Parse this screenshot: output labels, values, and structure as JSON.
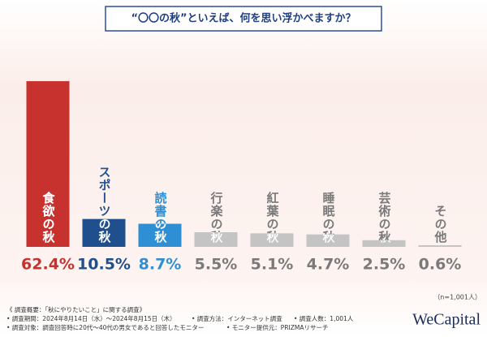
{
  "chart_data": {
    "type": "bar",
    "title": "“〇〇の秋”といえば、何を思い浮かべますか？",
    "categories": [
      "食欲の秋",
      "スポーツの秋",
      "読書の秋",
      "行楽の秋",
      "紅葉の秋",
      "睡眠の秋",
      "芸術の秋",
      "その他"
    ],
    "values": [
      62.4,
      10.5,
      8.7,
      5.5,
      5.1,
      4.7,
      2.5,
      0.6
    ],
    "value_labels": [
      "62.4%",
      "10.5%",
      "8.7%",
      "5.5%",
      "5.1%",
      "4.7%",
      "2.5%",
      "0.6%"
    ],
    "colors": [
      "#c7312e",
      "#1f4f8d",
      "#2e8fd4",
      "#c4c4c4",
      "#c4c4c4",
      "#c4c4c4",
      "#c4c4c4",
      "#c4c4c4"
    ],
    "label_colors": [
      "#c7312e",
      "#1f4f8d",
      "#2e8fd4",
      "#7a7a7a",
      "#7a7a7a",
      "#7a7a7a",
      "#7a7a7a",
      "#7a7a7a"
    ],
    "sample_note": "（n=1,001人）"
  },
  "footer": {
    "heading": "《 調査概要：「秋にやりたいこと」に関する調査》",
    "items": [
      "• 調査期間：2024年8月14日（水）〜2024年8月15日（木）",
      "• 調査方法：インターネット調査",
      "• 調査人数：1,001人",
      "• 調査対象：調査回答時に20代〜40代の男女であると回答したモニター",
      "• モニター提供元：PRIZMAリサーチ"
    ],
    "logo": "WeCapital"
  }
}
